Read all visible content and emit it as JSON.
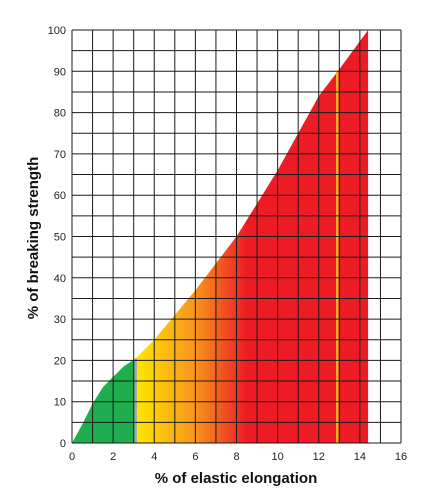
{
  "chart_data": {
    "type": "area",
    "title": "",
    "xlabel": "% of elastic elongation",
    "ylabel": "% of breaking strength",
    "xlim": [
      0,
      16
    ],
    "ylim": [
      0,
      100
    ],
    "x_ticks": [
      "0",
      "2",
      "4",
      "6",
      "8",
      "10",
      "12",
      "14",
      "16"
    ],
    "y_ticks": [
      "0",
      "10",
      "20",
      "30",
      "40",
      "50",
      "60",
      "70",
      "80",
      "90",
      "100"
    ],
    "grid": true,
    "series": [
      {
        "x": [
          0,
          0.5,
          1,
          1.5,
          2,
          2.5,
          3.1,
          4,
          5,
          6,
          7,
          8,
          9,
          10,
          11,
          12,
          13,
          14.4
        ],
        "y": [
          0,
          4.5,
          9.5,
          13.5,
          16,
          18.5,
          20.5,
          25,
          31,
          37,
          43.5,
          50,
          58,
          66,
          75,
          84,
          90.5,
          100
        ]
      }
    ],
    "fill_colors": {
      "low": "#1fad4e",
      "transition": "#ffe600",
      "mid": "#f7941d",
      "high": "#ed1c24"
    },
    "markers": [
      {
        "x": 3.1,
        "color": "#a8a8a8"
      },
      {
        "x": 12.9,
        "color": "#f5b019"
      }
    ]
  }
}
